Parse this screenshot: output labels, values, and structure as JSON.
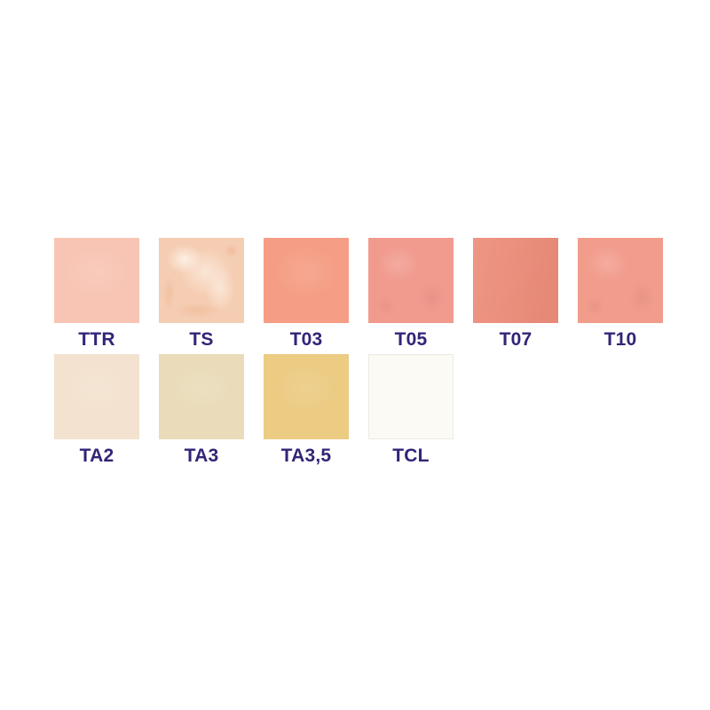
{
  "page": {
    "background": "#ffffff",
    "label_color": "#312577"
  },
  "shade_guide": {
    "rows": [
      {
        "name": "tissue-shades-row",
        "swatch_indexes": [
          0,
          1,
          2,
          3,
          4,
          5
        ]
      },
      {
        "name": "gum-base-shades-row",
        "swatch_indexes": [
          6,
          7,
          8,
          9
        ]
      }
    ],
    "swatches": [
      {
        "label": "TTR",
        "color": "#f8c5b4",
        "texture": "soft"
      },
      {
        "label": "TS",
        "color": "#f5cdb2",
        "texture": "marbled"
      },
      {
        "label": "T03",
        "color": "#f59e85",
        "texture": "soft"
      },
      {
        "label": "T05",
        "color": "#f19b8e",
        "texture": "cloudy"
      },
      {
        "label": "T07",
        "color": "#ee8d7b",
        "texture": "shaded"
      },
      {
        "label": "T10",
        "color": "#f29c8c",
        "texture": "cloudy"
      },
      {
        "label": "TA2",
        "color": "#f3e2cf",
        "texture": "soft"
      },
      {
        "label": "TA3",
        "color": "#eadcba",
        "texture": "soft"
      },
      {
        "label": "TA3,5",
        "color": "#eccb83",
        "texture": "soft"
      },
      {
        "label": "TCL",
        "color": "#fbfaf5",
        "texture": "bordered"
      }
    ]
  }
}
